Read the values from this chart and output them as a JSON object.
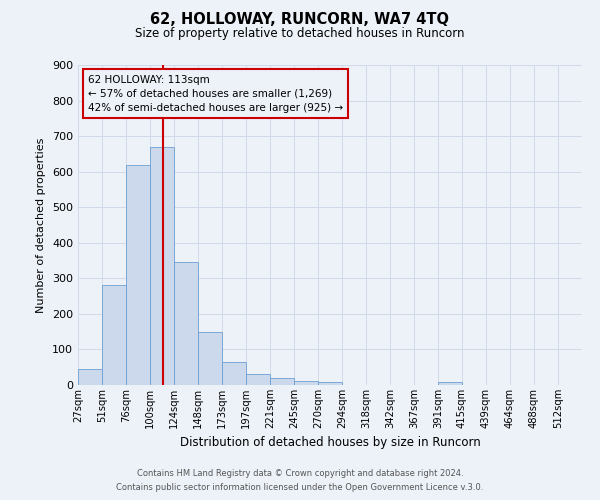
{
  "title": "62, HOLLOWAY, RUNCORN, WA7 4TQ",
  "subtitle": "Size of property relative to detached houses in Runcorn",
  "xlabel": "Distribution of detached houses by size in Runcorn",
  "ylabel": "Number of detached properties",
  "bin_labels": [
    "27sqm",
    "51sqm",
    "76sqm",
    "100sqm",
    "124sqm",
    "148sqm",
    "173sqm",
    "197sqm",
    "221sqm",
    "245sqm",
    "270sqm",
    "294sqm",
    "318sqm",
    "342sqm",
    "367sqm",
    "391sqm",
    "415sqm",
    "439sqm",
    "464sqm",
    "488sqm",
    "512sqm"
  ],
  "bar_heights": [
    45,
    280,
    620,
    670,
    345,
    150,
    65,
    30,
    20,
    10,
    8,
    0,
    0,
    0,
    0,
    8,
    0,
    0,
    0,
    0,
    0
  ],
  "bar_color": "#ccd9ed",
  "bar_edge_color": "#6b9fd4",
  "grid_color": "#d0dae8",
  "background_color": "#edf2f9",
  "vline_x_bin": 3.8,
  "vline_color": "#cc0000",
  "annotation_title": "62 HOLLOWAY: 113sqm",
  "annotation_line1": "← 57% of detached houses are smaller (1,269)",
  "annotation_line2": "42% of semi-detached houses are larger (925) →",
  "annotation_box_edge": "#cc0000",
  "ylim": [
    0,
    900
  ],
  "yticks": [
    0,
    100,
    200,
    300,
    400,
    500,
    600,
    700,
    800,
    900
  ],
  "footnote1": "Contains HM Land Registry data © Crown copyright and database right 2024.",
  "footnote2": "Contains public sector information licensed under the Open Government Licence v.3.0.",
  "n_bins": 21
}
